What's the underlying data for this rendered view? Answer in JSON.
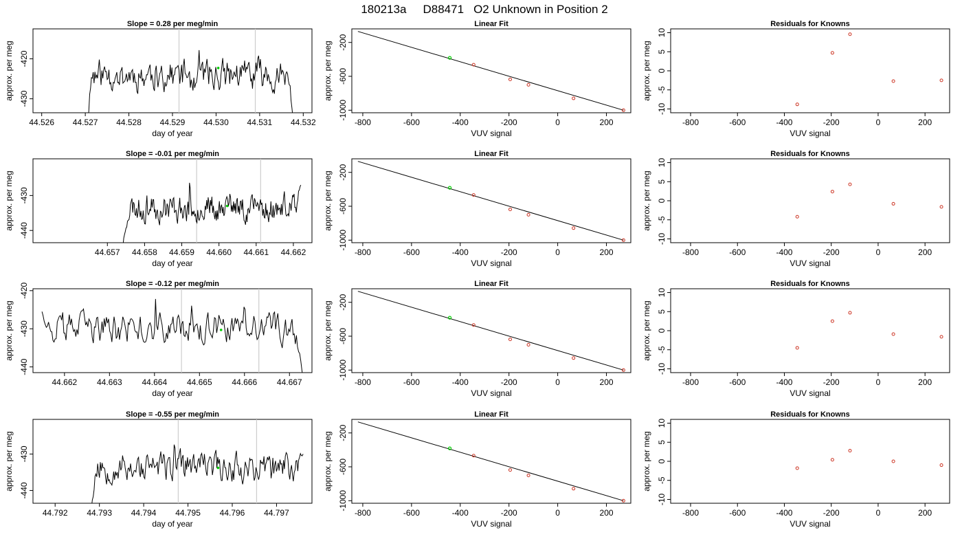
{
  "figure": {
    "run_id": "180213a",
    "tank_id": "D88471",
    "label": "O2 Unknown in Position  2"
  },
  "colors": {
    "line": "#000000",
    "vline": "#cccccc",
    "marker": "#00cc00",
    "known": "#cc3322"
  },
  "chart_data": [
    {
      "type": "line",
      "title": "Slope =  0.28  per meg/min",
      "xlabel": "day of year",
      "ylabel": "approx. per meg",
      "xlim": [
        44.5258,
        44.5322
      ],
      "ylim": [
        -433.5,
        -412.5
      ],
      "xticks": [
        "44.526",
        "44.527",
        "44.528",
        "44.529",
        "44.530",
        "44.531",
        "44.532"
      ],
      "yticks": [
        "-420",
        "-430"
      ],
      "vlines": [
        44.52915,
        44.5309
      ],
      "marker": {
        "x": 44.53005,
        "y": -422.3
      },
      "series": {
        "x_start": 44.527,
        "x_end": 44.5318,
        "baseline": -424.0,
        "start": -440,
        "end": -440,
        "seed": 11
      }
    },
    {
      "type": "scatter",
      "title": "Linear Fit",
      "xlabel": "VUV signal",
      "ylabel": "approx. per meg",
      "xlim": [
        -845,
        300
      ],
      "ylim": [
        -1030,
        -40
      ],
      "xticks": [
        "-800",
        "-600",
        "-400",
        "-200",
        "0",
        "200"
      ],
      "yticks": [
        "-200",
        "-600",
        "-1000"
      ],
      "line": [
        [
          -820,
          -70
        ],
        [
          270,
          -1000
        ]
      ],
      "points": [
        [
          -345,
          -463
        ],
        [
          -195,
          -636
        ],
        [
          -120,
          -700
        ],
        [
          65,
          -860
        ],
        [
          270,
          -1000
        ]
      ],
      "green_point": [
        -443,
        -382
      ]
    },
    {
      "type": "scatter",
      "title": "Residuals for Knowns",
      "xlabel": "VUV signal",
      "ylabel": "approx. per meg",
      "xlim": [
        -885,
        305
      ],
      "ylim": [
        -11,
        11
      ],
      "xticks": [
        "-800",
        "-600",
        "-400",
        "-200",
        "0",
        "200"
      ],
      "yticks": [
        "10",
        "5",
        "0",
        "-5",
        "-10"
      ],
      "points": [
        [
          -345,
          -8.8
        ],
        [
          -195,
          4.7
        ],
        [
          -120,
          9.6
        ],
        [
          65,
          -2.7
        ],
        [
          270,
          -2.5
        ]
      ]
    },
    {
      "type": "line",
      "title": "Slope =  -0.01  per meg/min",
      "xlabel": "day of year",
      "ylabel": "approx. per meg",
      "xlim": [
        44.655,
        44.6625
      ],
      "ylim": [
        -443.5,
        -419.5
      ],
      "xticks": [
        "44.657",
        "44.658",
        "44.659",
        "44.660",
        "44.661",
        "44.662"
      ],
      "yticks": [
        "-430",
        "-440"
      ],
      "vlines": [
        44.6594,
        44.66112
      ],
      "marker": {
        "x": 44.66022,
        "y": -433.0
      },
      "series": {
        "x_start": 44.6574,
        "x_end": 44.6622,
        "baseline": -433.5,
        "start": -446,
        "end": -427,
        "seed": 23
      }
    },
    {
      "type": "scatter",
      "title": "Linear Fit",
      "xlabel": "VUV signal",
      "ylabel": "approx. per meg",
      "xlim": [
        -845,
        300
      ],
      "ylim": [
        -1030,
        -40
      ],
      "xticks": [
        "-800",
        "-600",
        "-400",
        "-200",
        "0",
        "200"
      ],
      "yticks": [
        "-200",
        "-600",
        "-1000"
      ],
      "line": [
        [
          -820,
          -70
        ],
        [
          270,
          -1000
        ]
      ],
      "points": [
        [
          -345,
          -467
        ],
        [
          -195,
          -637
        ],
        [
          -120,
          -700
        ],
        [
          65,
          -858
        ],
        [
          270,
          -1000
        ]
      ],
      "green_point": [
        -443,
        -382
      ]
    },
    {
      "type": "scatter",
      "title": "Residuals for Knowns",
      "xlabel": "VUV signal",
      "ylabel": "approx. per meg",
      "xlim": [
        -885,
        305
      ],
      "ylim": [
        -11,
        11
      ],
      "xticks": [
        "-800",
        "-600",
        "-400",
        "-200",
        "0",
        "200"
      ],
      "yticks": [
        "10",
        "5",
        "0",
        "-5",
        "-10"
      ],
      "points": [
        [
          -345,
          -4.2
        ],
        [
          -195,
          2.4
        ],
        [
          -120,
          4.3
        ],
        [
          65,
          -0.8
        ],
        [
          270,
          -1.6
        ]
      ]
    },
    {
      "type": "line",
      "title": "Slope =  -0.12  per meg/min",
      "xlabel": "day of year",
      "ylabel": "approx. per meg",
      "xlim": [
        44.6613,
        44.6675
      ],
      "ylim": [
        -441.5,
        -419.5
      ],
      "xticks": [
        "44.662",
        "44.663",
        "44.664",
        "44.665",
        "44.666",
        "44.667"
      ],
      "yticks": [
        "-420",
        "-430",
        "-440"
      ],
      "vlines": [
        44.6646,
        44.66632
      ],
      "marker": {
        "x": 44.66548,
        "y": -430.3
      },
      "series": {
        "x_start": 44.6615,
        "x_end": 44.6673,
        "baseline": -430.0,
        "start": -425.5,
        "end": -443,
        "seed": 37
      }
    },
    {
      "type": "scatter",
      "title": "Linear Fit",
      "xlabel": "VUV signal",
      "ylabel": "approx. per meg",
      "xlim": [
        -845,
        300
      ],
      "ylim": [
        -1030,
        -40
      ],
      "xticks": [
        "-800",
        "-600",
        "-400",
        "-200",
        "0",
        "200"
      ],
      "yticks": [
        "-200",
        "-600",
        "-1000"
      ],
      "line": [
        [
          -820,
          -70
        ],
        [
          270,
          -1000
        ]
      ],
      "points": [
        [
          -345,
          -468
        ],
        [
          -195,
          -637
        ],
        [
          -120,
          -701
        ],
        [
          65,
          -858
        ],
        [
          270,
          -1000
        ]
      ],
      "green_point": [
        -443,
        -382
      ]
    },
    {
      "type": "scatter",
      "title": "Residuals for Knowns",
      "xlabel": "VUV signal",
      "ylabel": "approx. per meg",
      "xlim": [
        -885,
        305
      ],
      "ylim": [
        -11,
        11
      ],
      "xticks": [
        "-800",
        "-600",
        "-400",
        "-200",
        "0",
        "200"
      ],
      "yticks": [
        "10",
        "5",
        "0",
        "-5",
        "-10"
      ],
      "points": [
        [
          -345,
          -4.5
        ],
        [
          -195,
          2.5
        ],
        [
          -120,
          4.7
        ],
        [
          65,
          -0.9
        ],
        [
          270,
          -1.6
        ]
      ]
    },
    {
      "type": "line",
      "title": "Slope =  -0.55  per meg/min",
      "xlabel": "day of year",
      "ylabel": "approx. per meg",
      "xlim": [
        44.7915,
        44.7978
      ],
      "ylim": [
        -443.5,
        -420.5
      ],
      "xticks": [
        "44.792",
        "44.793",
        "44.794",
        "44.795",
        "44.796",
        "44.797"
      ],
      "yticks": [
        "-430",
        "-440"
      ],
      "vlines": [
        44.79478,
        44.79655
      ],
      "marker": {
        "x": 44.79568,
        "y": -433.8
      },
      "series": {
        "x_start": 44.7928,
        "x_end": 44.7976,
        "baseline": -433.5,
        "start": -446,
        "end": -430,
        "seed": 53
      }
    },
    {
      "type": "scatter",
      "title": "Linear Fit",
      "xlabel": "VUV signal",
      "ylabel": "approx. per meg",
      "xlim": [
        -845,
        300
      ],
      "ylim": [
        -1030,
        -40
      ],
      "xticks": [
        "-800",
        "-600",
        "-400",
        "-200",
        "0",
        "200"
      ],
      "yticks": [
        "-200",
        "-600",
        "-1000"
      ],
      "line": [
        [
          -820,
          -70
        ],
        [
          270,
          -1000
        ]
      ],
      "points": [
        [
          -345,
          -468
        ],
        [
          -195,
          -637
        ],
        [
          -120,
          -701
        ],
        [
          65,
          -858
        ],
        [
          270,
          -1000
        ]
      ],
      "green_point": [
        -443,
        -382
      ]
    },
    {
      "type": "scatter",
      "title": "Residuals for Knowns",
      "xlabel": "VUV signal",
      "ylabel": "approx. per meg",
      "xlim": [
        -885,
        305
      ],
      "ylim": [
        -11,
        11
      ],
      "xticks": [
        "-800",
        "-600",
        "-400",
        "-200",
        "0",
        "200"
      ],
      "yticks": [
        "10",
        "5",
        "0",
        "-5",
        "-10"
      ],
      "points": [
        [
          -345,
          -1.8
        ],
        [
          -195,
          0.4
        ],
        [
          -120,
          2.8
        ],
        [
          65,
          0.0
        ],
        [
          270,
          -1.0
        ]
      ]
    }
  ]
}
